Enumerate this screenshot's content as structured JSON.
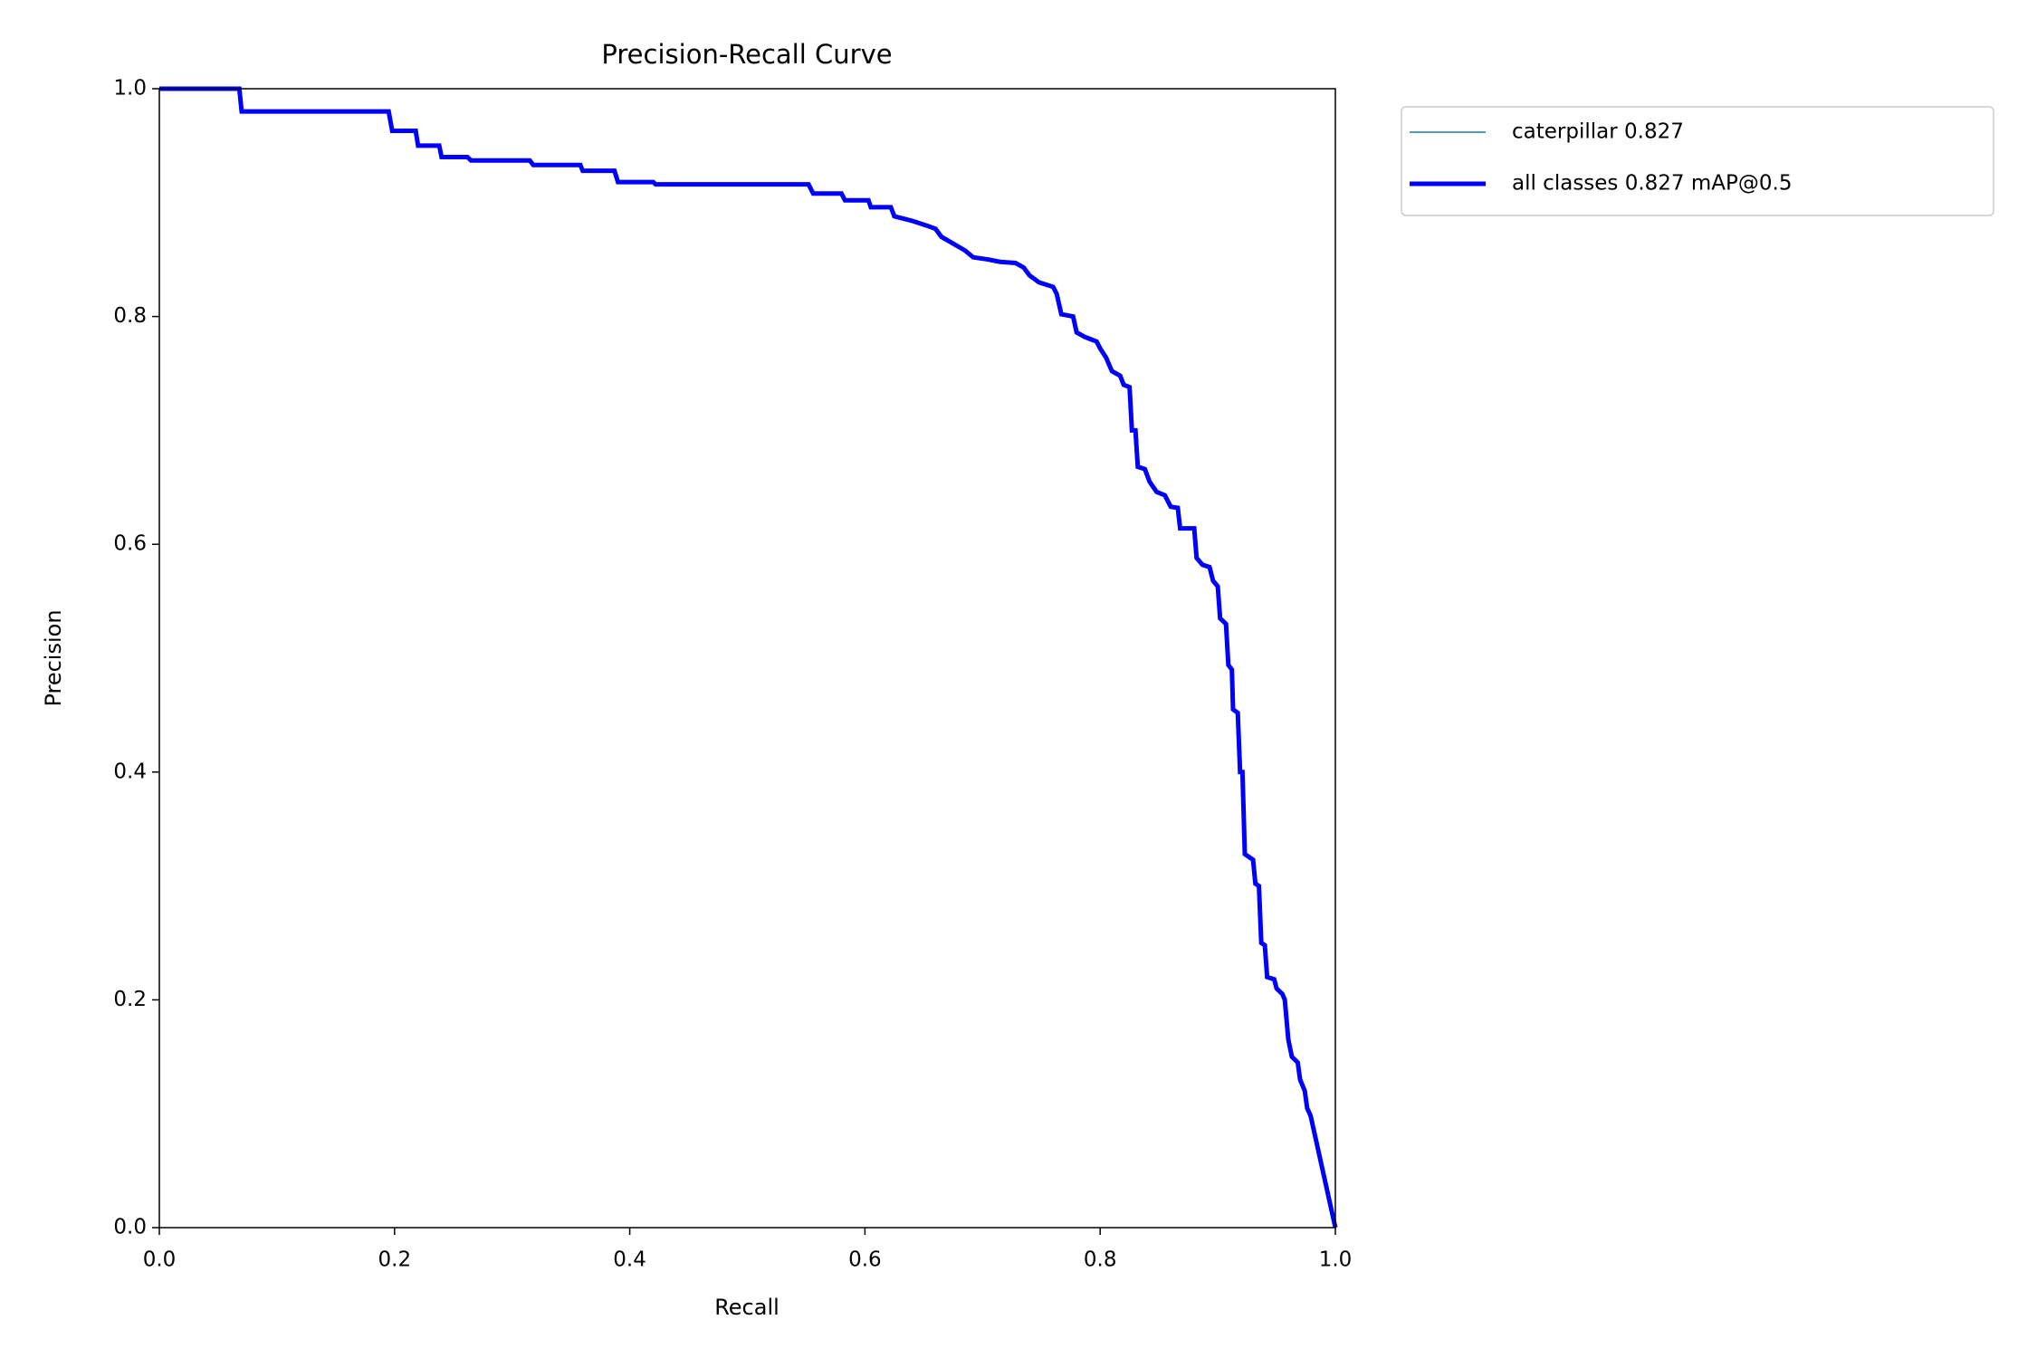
{
  "chart_data": {
    "type": "line",
    "title": "Precision-Recall Curve",
    "x_label": "Recall",
    "y_label": "Precision",
    "x": [
      0,
      0.068,
      0.07,
      0.195,
      0.198,
      0.218,
      0.22,
      0.238,
      0.24,
      0.262,
      0.265,
      0.315,
      0.318,
      0.358,
      0.36,
      0.387,
      0.39,
      0.42,
      0.422,
      0.552,
      0.556,
      0.58,
      0.583,
      0.603,
      0.605,
      0.622,
      0.625,
      0.64,
      0.652,
      0.66,
      0.665,
      0.675,
      0.685,
      0.692,
      0.705,
      0.715,
      0.728,
      0.735,
      0.74,
      0.748,
      0.76,
      0.763,
      0.767,
      0.777,
      0.78,
      0.787,
      0.797,
      0.8,
      0.805,
      0.81,
      0.817,
      0.82,
      0.825,
      0.827,
      0.83,
      0.832,
      0.838,
      0.842,
      0.848,
      0.855,
      0.86,
      0.866,
      0.868,
      0.88,
      0.882,
      0.887,
      0.893,
      0.896,
      0.9,
      0.902,
      0.907,
      0.909,
      0.912,
      0.913,
      0.917,
      0.919,
      0.921,
      0.923,
      0.93,
      0.932,
      0.935,
      0.937,
      0.94,
      0.942,
      0.948,
      0.95,
      0.955,
      0.957,
      0.96,
      0.963,
      0.968,
      0.97,
      0.974,
      0.976,
      0.979,
      1.0
    ],
    "series": [
      {
        "name": "caterpillar 0.827",
        "color": "#1f77b4",
        "linewidth": 1.5,
        "values": [
          1,
          1,
          0.98,
          0.98,
          0.963,
          0.963,
          0.95,
          0.95,
          0.94,
          0.94,
          0.937,
          0.937,
          0.933,
          0.933,
          0.928,
          0.928,
          0.918,
          0.918,
          0.916,
          0.916,
          0.908,
          0.908,
          0.902,
          0.902,
          0.896,
          0.896,
          0.888,
          0.884,
          0.88,
          0.877,
          0.87,
          0.864,
          0.858,
          0.852,
          0.85,
          0.848,
          0.847,
          0.843,
          0.836,
          0.83,
          0.826,
          0.82,
          0.802,
          0.8,
          0.786,
          0.782,
          0.778,
          0.772,
          0.764,
          0.752,
          0.748,
          0.74,
          0.738,
          0.7,
          0.7,
          0.668,
          0.666,
          0.655,
          0.646,
          0.643,
          0.633,
          0.632,
          0.614,
          0.614,
          0.588,
          0.582,
          0.58,
          0.568,
          0.563,
          0.535,
          0.53,
          0.494,
          0.49,
          0.455,
          0.452,
          0.4,
          0.4,
          0.328,
          0.323,
          0.302,
          0.3,
          0.25,
          0.248,
          0.22,
          0.218,
          0.21,
          0.205,
          0.2,
          0.165,
          0.15,
          0.145,
          0.13,
          0.12,
          0.105,
          0.098,
          0
        ]
      },
      {
        "name": "all classes 0.827 mAP@0.5",
        "color": "#0000ff",
        "linewidth": 5,
        "values": [
          1,
          1,
          0.98,
          0.98,
          0.963,
          0.963,
          0.95,
          0.95,
          0.94,
          0.94,
          0.937,
          0.937,
          0.933,
          0.933,
          0.928,
          0.928,
          0.918,
          0.918,
          0.916,
          0.916,
          0.908,
          0.908,
          0.902,
          0.902,
          0.896,
          0.896,
          0.888,
          0.884,
          0.88,
          0.877,
          0.87,
          0.864,
          0.858,
          0.852,
          0.85,
          0.848,
          0.847,
          0.843,
          0.836,
          0.83,
          0.826,
          0.82,
          0.802,
          0.8,
          0.786,
          0.782,
          0.778,
          0.772,
          0.764,
          0.752,
          0.748,
          0.74,
          0.738,
          0.7,
          0.7,
          0.668,
          0.666,
          0.655,
          0.646,
          0.643,
          0.633,
          0.632,
          0.614,
          0.614,
          0.588,
          0.582,
          0.58,
          0.568,
          0.563,
          0.535,
          0.53,
          0.494,
          0.49,
          0.455,
          0.452,
          0.4,
          0.4,
          0.328,
          0.323,
          0.302,
          0.3,
          0.25,
          0.248,
          0.22,
          0.218,
          0.21,
          0.205,
          0.2,
          0.165,
          0.15,
          0.145,
          0.13,
          0.12,
          0.105,
          0.098,
          0
        ]
      }
    ],
    "xlim": [
      0,
      1
    ],
    "ylim": [
      0,
      1
    ],
    "xticks": [
      {
        "value": 0,
        "label": "0.0"
      },
      0.2,
      0.4,
      0.6,
      0.8,
      {
        "value": 1,
        "label": "1.0"
      }
    ],
    "yticks": [
      {
        "value": 0,
        "label": "0.0"
      },
      0.2,
      0.4,
      0.6,
      0.8,
      {
        "value": 1,
        "label": "1.0"
      }
    ],
    "grid": false,
    "legend": "outside"
  }
}
